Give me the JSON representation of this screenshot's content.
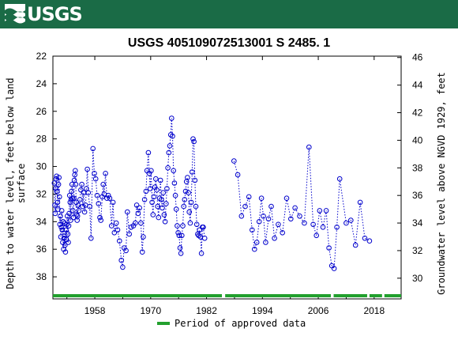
{
  "header": {
    "agency": "USGS",
    "brand_color": "#1a6b46"
  },
  "chart_data": {
    "type": "scatter",
    "title": "USGS 405109072513001 S  2485. 1",
    "ylabel_left": "Depth to water level, feet below land surface",
    "ylabel_left_lines": [
      "Depth to water level, feet below land",
      "surface"
    ],
    "ylabel_right": "Groundwater level above NGVD 1929, feet",
    "x_ticks": [
      1958,
      1970,
      1982,
      1994,
      2006,
      2018
    ],
    "xlim": [
      1949.0,
      2023.8
    ],
    "ylim_left": [
      22,
      39.6
    ],
    "y_ticks_left": [
      22,
      24,
      26,
      28,
      30,
      32,
      34,
      36,
      38
    ],
    "y_ticks_right": [
      46,
      44,
      42,
      40,
      38,
      36,
      34,
      32,
      30
    ],
    "right_offset": 68.1,
    "grid": false,
    "line_style": "dotted",
    "series_color": "#0000cc",
    "legend": {
      "label": "Period of approved data",
      "color": "#22a02e",
      "position": "bottom-center"
    },
    "approved_periods": [
      [
        1949.0,
        1985.3
      ],
      [
        1986.0,
        2008.7
      ],
      [
        2009.3,
        2016.5
      ],
      [
        2017.0,
        2019.7
      ],
      [
        2020.2,
        2023.8
      ]
    ],
    "series": [
      {
        "values": [
          [
            1949.3,
            31.2
          ],
          [
            1949.4,
            32.8
          ],
          [
            1949.5,
            33.4
          ],
          [
            1949.6,
            31.6
          ],
          [
            1949.7,
            30.9
          ],
          [
            1949.8,
            30.7
          ],
          [
            1949.9,
            31.8
          ],
          [
            1950.0,
            32.6
          ],
          [
            1950.1,
            33.1
          ],
          [
            1950.2,
            31.3
          ],
          [
            1950.3,
            30.8
          ],
          [
            1950.4,
            32.2
          ],
          [
            1950.5,
            34.2
          ],
          [
            1950.6,
            33.6
          ],
          [
            1950.7,
            35.1
          ],
          [
            1950.8,
            34.4
          ],
          [
            1950.9,
            33.2
          ],
          [
            1951.0,
            34.6
          ],
          [
            1951.1,
            35.5
          ],
          [
            1951.2,
            34.0
          ],
          [
            1951.3,
            36.0
          ],
          [
            1951.4,
            35.2
          ],
          [
            1951.5,
            34.1
          ],
          [
            1951.6,
            35.7
          ],
          [
            1951.7,
            36.2
          ],
          [
            1951.8,
            34.6
          ],
          [
            1951.9,
            35.3
          ],
          [
            1952.0,
            34.2
          ],
          [
            1952.1,
            33.6
          ],
          [
            1952.2,
            34.9
          ],
          [
            1952.3,
            35.5
          ],
          [
            1952.4,
            34.3
          ],
          [
            1952.5,
            33.4
          ],
          [
            1952.6,
            32.1
          ],
          [
            1952.7,
            32.6
          ],
          [
            1952.8,
            33.9
          ],
          [
            1952.9,
            32.4
          ],
          [
            1953.0,
            31.8
          ],
          [
            1953.1,
            31.3
          ],
          [
            1953.2,
            32.3
          ],
          [
            1953.3,
            33.2
          ],
          [
            1953.4,
            33.7
          ],
          [
            1953.5,
            32.3
          ],
          [
            1953.6,
            31.0
          ],
          [
            1953.7,
            30.6
          ],
          [
            1953.8,
            30.3
          ],
          [
            1953.9,
            31.3
          ],
          [
            1954.0,
            32.6
          ],
          [
            1954.1,
            33.5
          ],
          [
            1954.2,
            33.9
          ],
          [
            1954.3,
            33.6
          ],
          [
            1954.4,
            32.8
          ],
          [
            1954.6,
            33.2
          ],
          [
            1954.8,
            32.4
          ],
          [
            1955.0,
            31.7
          ],
          [
            1955.2,
            31.3
          ],
          [
            1955.4,
            32.9
          ],
          [
            1955.6,
            31.9
          ],
          [
            1955.8,
            33.3
          ],
          [
            1956.0,
            32.8
          ],
          [
            1956.2,
            31.6
          ],
          [
            1956.4,
            30.2
          ],
          [
            1956.6,
            31.9
          ],
          [
            1956.9,
            32.9
          ],
          [
            1957.2,
            35.2
          ],
          [
            1957.6,
            28.7
          ],
          [
            1957.9,
            30.5
          ],
          [
            1958.2,
            30.9
          ],
          [
            1958.5,
            32.1
          ],
          [
            1958.8,
            32.7
          ],
          [
            1959.1,
            33.7
          ],
          [
            1959.3,
            33.9
          ],
          [
            1959.6,
            32.2
          ],
          [
            1959.8,
            31.3
          ],
          [
            1960.0,
            32.0
          ],
          [
            1960.3,
            30.5
          ],
          [
            1960.6,
            32.3
          ],
          [
            1960.9,
            32.1
          ],
          [
            1961.2,
            32.3
          ],
          [
            1961.6,
            34.3
          ],
          [
            1961.9,
            32.6
          ],
          [
            1962.2,
            34.8
          ],
          [
            1962.6,
            34.1
          ],
          [
            1962.9,
            34.6
          ],
          [
            1963.3,
            35.4
          ],
          [
            1963.7,
            36.8
          ],
          [
            1964.0,
            37.3
          ],
          [
            1964.3,
            35.9
          ],
          [
            1964.7,
            36.1
          ],
          [
            1965.0,
            33.3
          ],
          [
            1965.4,
            34.9
          ],
          [
            1965.8,
            34.4
          ],
          [
            1966.3,
            34.3
          ],
          [
            1966.7,
            34.1
          ],
          [
            1967.0,
            32.8
          ],
          [
            1967.3,
            33.4
          ],
          [
            1967.6,
            33.0
          ],
          [
            1967.9,
            34.1
          ],
          [
            1968.2,
            36.2
          ],
          [
            1968.4,
            35.1
          ],
          [
            1968.7,
            32.4
          ],
          [
            1969.0,
            31.8
          ],
          [
            1969.2,
            30.3
          ],
          [
            1969.5,
            29.0
          ],
          [
            1969.7,
            30.5
          ],
          [
            1969.9,
            31.6
          ],
          [
            1970.1,
            30.3
          ],
          [
            1970.3,
            32.6
          ],
          [
            1970.5,
            33.5
          ],
          [
            1970.7,
            32.2
          ],
          [
            1970.9,
            31.5
          ],
          [
            1971.1,
            30.9
          ],
          [
            1971.3,
            31.7
          ],
          [
            1971.5,
            32.9
          ],
          [
            1971.7,
            33.7
          ],
          [
            1971.9,
            32.3
          ],
          [
            1972.1,
            31.0
          ],
          [
            1972.3,
            32.4
          ],
          [
            1972.5,
            33.0
          ],
          [
            1972.7,
            31.9
          ],
          [
            1972.9,
            33.5
          ],
          [
            1973.1,
            34.0
          ],
          [
            1973.3,
            32.7
          ],
          [
            1973.5,
            31.6
          ],
          [
            1973.7,
            30.1
          ],
          [
            1973.9,
            29.0
          ],
          [
            1974.1,
            28.5
          ],
          [
            1974.3,
            27.7
          ],
          [
            1974.5,
            26.5
          ],
          [
            1974.7,
            27.8
          ],
          [
            1974.9,
            30.3
          ],
          [
            1975.1,
            31.2
          ],
          [
            1975.3,
            32.1
          ],
          [
            1975.5,
            33.1
          ],
          [
            1975.7,
            34.3
          ],
          [
            1975.9,
            34.8
          ],
          [
            1976.1,
            35.0
          ],
          [
            1976.3,
            35.9
          ],
          [
            1976.5,
            36.3
          ],
          [
            1976.7,
            35.0
          ],
          [
            1976.9,
            34.3
          ],
          [
            1977.1,
            32.9
          ],
          [
            1977.3,
            32.4
          ],
          [
            1977.5,
            31.8
          ],
          [
            1977.7,
            31.1
          ],
          [
            1977.9,
            30.8
          ],
          [
            1978.1,
            31.9
          ],
          [
            1978.3,
            33.3
          ],
          [
            1978.5,
            34.1
          ],
          [
            1978.7,
            32.6
          ],
          [
            1978.9,
            30.4
          ],
          [
            1979.1,
            28.0
          ],
          [
            1979.3,
            28.2
          ],
          [
            1979.5,
            31.0
          ],
          [
            1979.7,
            32.9
          ],
          [
            1979.9,
            34.2
          ],
          [
            1980.1,
            34.9
          ],
          [
            1980.3,
            35.0
          ],
          [
            1980.5,
            34.6
          ],
          [
            1980.7,
            35.1
          ],
          [
            1980.9,
            36.3
          ],
          [
            1981.1,
            34.4
          ],
          [
            1981.3,
            34.4
          ],
          [
            1981.6,
            35.2
          ]
        ]
      },
      {
        "values": [
          [
            1987.9,
            29.6
          ],
          [
            1988.7,
            30.6
          ],
          [
            1989.5,
            33.6
          ],
          [
            1990.3,
            32.9
          ],
          [
            1991.1,
            32.2
          ],
          [
            1991.8,
            34.6
          ],
          [
            1992.3,
            36.0
          ],
          [
            1992.8,
            35.5
          ],
          [
            1993.3,
            34.0
          ],
          [
            1993.8,
            32.3
          ],
          [
            1994.2,
            33.6
          ],
          [
            1994.7,
            35.5
          ],
          [
            1995.3,
            33.8
          ],
          [
            1995.9,
            32.9
          ],
          [
            1996.6,
            35.2
          ],
          [
            1997.4,
            34.2
          ],
          [
            1998.3,
            34.8
          ],
          [
            1999.2,
            32.3
          ],
          [
            2000.1,
            33.8
          ],
          [
            2001.0,
            33.0
          ],
          [
            2002.0,
            33.6
          ],
          [
            2003.0,
            34.1
          ],
          [
            2004.0,
            28.6
          ],
          [
            2004.9,
            34.2
          ],
          [
            2005.6,
            35.0
          ],
          [
            2006.3,
            33.2
          ],
          [
            2007.0,
            34.4
          ],
          [
            2007.7,
            33.2
          ],
          [
            2008.3,
            35.9
          ],
          [
            2008.9,
            37.2
          ],
          [
            2009.4,
            37.4
          ],
          [
            2010.0,
            34.4
          ],
          [
            2010.6,
            30.9
          ],
          [
            2012.0,
            34.1
          ],
          [
            2013.0,
            33.9
          ],
          [
            2014.0,
            35.7
          ],
          [
            2015.0,
            32.6
          ],
          [
            2016.0,
            35.2
          ],
          [
            2017.0,
            35.4
          ]
        ]
      }
    ]
  }
}
